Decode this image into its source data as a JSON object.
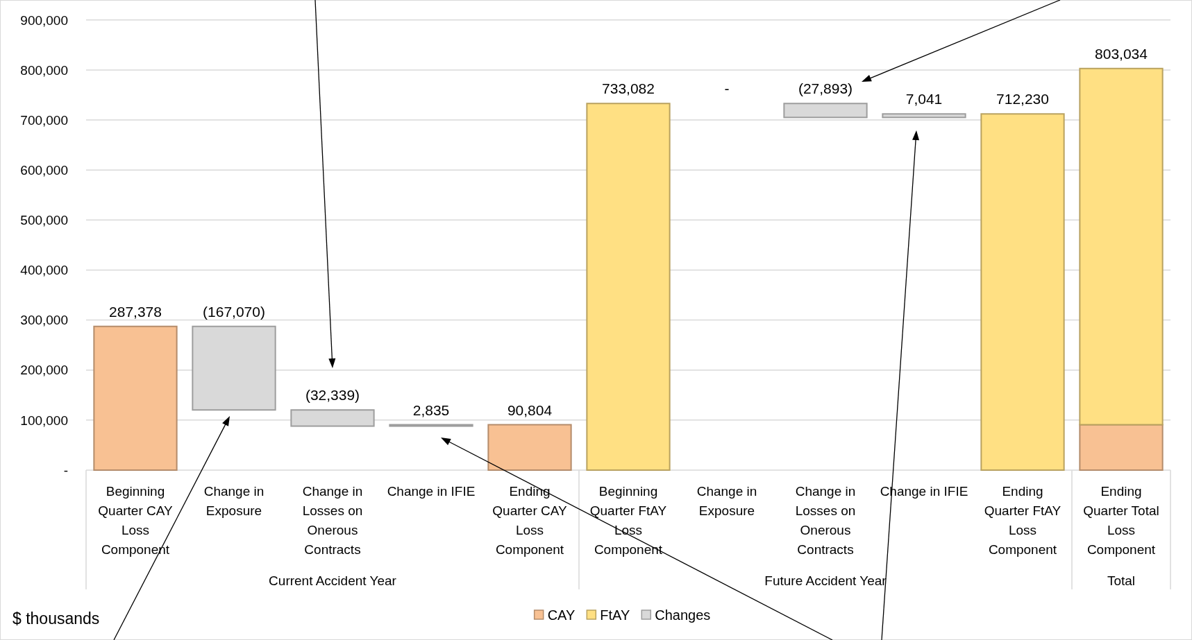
{
  "chart_data": {
    "type": "bar",
    "stacked": true,
    "categories": [
      "Beginning Quarter CAY Loss Component",
      "Change in Exposure",
      "Change in Losses on Onerous Contracts",
      "Change in IFIE",
      "Ending Quarter CAY Loss Component",
      "Beginning Quarter FtAY Loss Component",
      "Change in Exposure",
      "Change in Losses on Onerous Contracts",
      "Change in IFIE",
      "Ending Quarter FtAY Loss Component",
      "Ending Quarter Total Loss Component"
    ],
    "series": [
      {
        "name": "CAY",
        "color": "#f8c193",
        "values": [
          287378,
          null,
          null,
          null,
          90804,
          null,
          null,
          null,
          null,
          null,
          90804
        ],
        "value_labels": [
          "287,378",
          null,
          null,
          null,
          "90,804",
          null,
          null,
          null,
          null,
          null,
          null
        ]
      },
      {
        "name": "FtAY",
        "color": "#ffe083",
        "values": [
          null,
          null,
          null,
          null,
          null,
          733082,
          null,
          null,
          null,
          712230,
          712230
        ],
        "value_labels": [
          null,
          null,
          null,
          null,
          null,
          "733,082",
          null,
          null,
          null,
          "712,230",
          null
        ]
      },
      {
        "name": "Changes",
        "color": "#d9d9d9",
        "values": [
          null,
          -167070,
          -32339,
          2835,
          null,
          null,
          null,
          -27893,
          7041,
          null,
          null
        ],
        "base": [
          null,
          287378,
          120308,
          87969,
          null,
          null,
          null,
          733082,
          705189,
          null,
          null
        ],
        "value_labels": [
          null,
          "(167,070)",
          "(32,339)",
          "2,835",
          null,
          null,
          "-",
          "(27,893)",
          "7,041",
          null,
          null
        ]
      }
    ],
    "totals": [
      null,
      null,
      null,
      null,
      null,
      null,
      null,
      null,
      null,
      null,
      "803,034"
    ],
    "ylim": [
      0,
      940000
    ],
    "yticks": [
      {
        "value": 0,
        "label": "-"
      },
      {
        "value": 100000,
        "label": "100,000"
      },
      {
        "value": 200000,
        "label": "200,000"
      },
      {
        "value": 300000,
        "label": "300,000"
      },
      {
        "value": 400000,
        "label": "400,000"
      },
      {
        "value": 500000,
        "label": "500,000"
      },
      {
        "value": 600000,
        "label": "600,000"
      },
      {
        "value": 700000,
        "label": "700,000"
      },
      {
        "value": 800000,
        "label": "800,000"
      },
      {
        "value": 900000,
        "label": "900,000"
      }
    ],
    "grid": "y",
    "legend": "bottom",
    "annotations": [
      "Current Accident Year",
      "Future Accident Year",
      "Total",
      "$ thousands"
    ]
  }
}
